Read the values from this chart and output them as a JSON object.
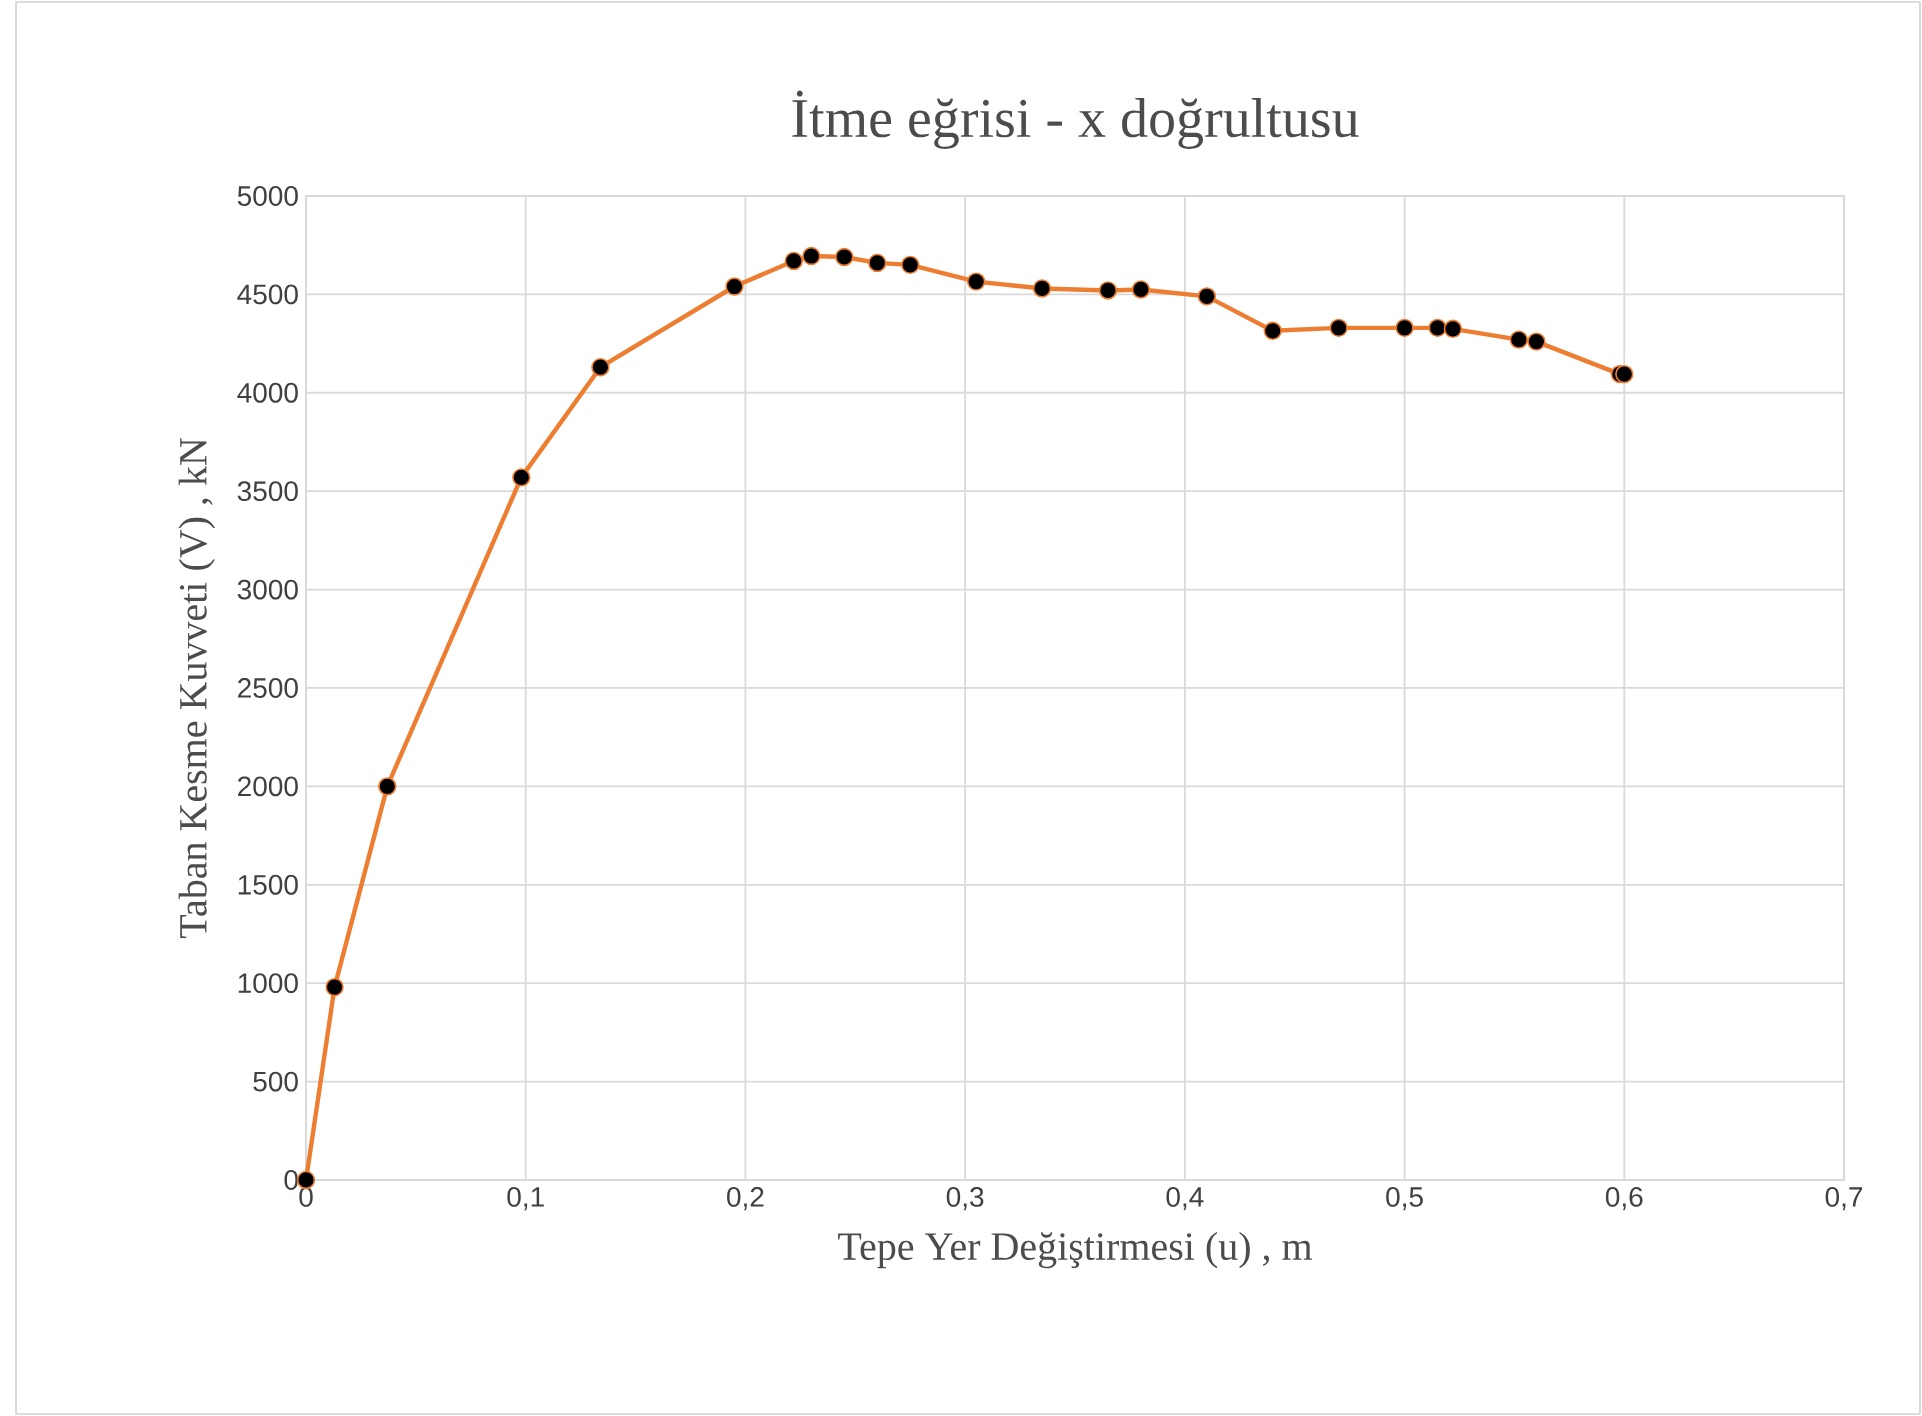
{
  "chart_data": {
    "type": "line",
    "title": "İtme eğrisi - x doğrultusu",
    "xlabel": "Tepe Yer Değiştirmesi (u) , m",
    "ylabel": "Taban Kesme Kuvveti (V) , kN",
    "x": [
      0,
      0.013,
      0.037,
      0.098,
      0.134,
      0.195,
      0.222,
      0.23,
      0.245,
      0.26,
      0.275,
      0.305,
      0.335,
      0.365,
      0.38,
      0.41,
      0.44,
      0.47,
      0.5,
      0.515,
      0.522,
      0.552,
      0.56,
      0.598,
      0.6
    ],
    "series": [
      {
        "color": "#ed7d31",
        "values": [
          0,
          980,
          2000,
          3570,
          4130,
          4540,
          4670,
          4695,
          4690,
          4660,
          4650,
          4565,
          4530,
          4520,
          4525,
          4490,
          4315,
          4330,
          4330,
          4330,
          4325,
          4270,
          4260,
          4095,
          4095
        ]
      }
    ],
    "xlim": [
      0,
      0.7
    ],
    "ylim": [
      0,
      5000
    ],
    "xticks": [
      0,
      {
        "value": 0.1,
        "label": "0,1"
      },
      {
        "value": 0.2,
        "label": "0,2"
      },
      {
        "value": 0.3,
        "label": "0,3"
      },
      {
        "value": 0.4,
        "label": "0,4"
      },
      {
        "value": 0.5,
        "label": "0,5"
      },
      {
        "value": 0.6,
        "label": "0,6"
      },
      {
        "value": 0.7,
        "label": "0,7"
      }
    ],
    "yticks": [
      0,
      500,
      1000,
      1500,
      2000,
      2500,
      3000,
      3500,
      4000,
      4500,
      5000
    ],
    "grid": true,
    "marker": "circle",
    "line_style": "solid"
  }
}
